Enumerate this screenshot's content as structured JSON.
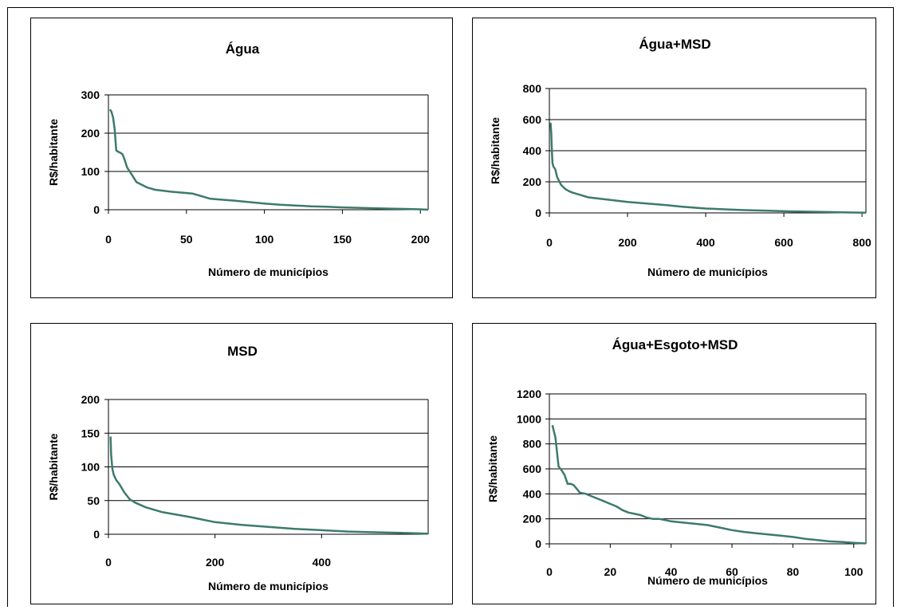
{
  "chart_data": [
    {
      "type": "line",
      "title": "Água",
      "xlabel": "Número de municípios",
      "ylabel": "R$/habitante",
      "xlim": [
        0,
        205
      ],
      "ylim": [
        0,
        300
      ],
      "xticks": [
        0,
        50,
        100,
        150,
        200
      ],
      "yticks": [
        0,
        100,
        200,
        300
      ],
      "grid": "horizontal",
      "series": [
        {
          "x": [
            1,
            2,
            3,
            4,
            5,
            6,
            7,
            8,
            9,
            10,
            12,
            14,
            16,
            18,
            20,
            25,
            30,
            40,
            54,
            60,
            65,
            70,
            80,
            90,
            100,
            110,
            120,
            130,
            140,
            150,
            160,
            170,
            180,
            190,
            200,
            205
          ],
          "y": [
            262,
            255,
            240,
            210,
            155,
            152,
            150,
            148,
            145,
            135,
            110,
            98,
            85,
            72,
            68,
            58,
            52,
            47,
            42,
            35,
            29,
            27,
            24,
            20,
            16,
            13,
            11,
            9,
            8,
            6,
            5,
            4,
            3,
            2,
            1,
            0
          ]
        }
      ]
    },
    {
      "type": "line",
      "title": "Água+MSD",
      "xlabel": "Número de municípios",
      "ylabel": "R$/habitante",
      "xlim": [
        0,
        810
      ],
      "ylim": [
        0,
        800
      ],
      "xticks": [
        0,
        200,
        400,
        600,
        800
      ],
      "yticks": [
        0,
        200,
        400,
        600,
        800
      ],
      "grid": "horizontal",
      "series": [
        {
          "x": [
            3,
            5,
            6,
            8,
            10,
            15,
            20,
            30,
            40,
            50,
            60,
            80,
            100,
            150,
            200,
            250,
            300,
            340,
            400,
            460,
            500,
            560,
            620,
            700,
            760,
            810
          ],
          "y": [
            580,
            500,
            430,
            320,
            300,
            280,
            230,
            180,
            155,
            140,
            130,
            115,
            100,
            85,
            70,
            60,
            50,
            40,
            28,
            22,
            18,
            14,
            10,
            6,
            3,
            1
          ]
        }
      ]
    },
    {
      "type": "line",
      "title": "MSD",
      "xlabel": "Número de municípios",
      "ylabel": "R$/habitante",
      "xlim": [
        0,
        600
      ],
      "ylim": [
        0,
        200
      ],
      "xticks": [
        0,
        200,
        400
      ],
      "yticks": [
        0,
        50,
        100,
        150,
        200
      ],
      "grid": "horizontal",
      "series": [
        {
          "x": [
            4,
            5,
            6,
            7,
            8,
            10,
            15,
            20,
            30,
            40,
            50,
            70,
            100,
            150,
            200,
            250,
            300,
            350,
            400,
            450,
            500,
            550,
            600
          ],
          "y": [
            145,
            120,
            110,
            100,
            95,
            88,
            80,
            75,
            62,
            52,
            47,
            40,
            33,
            26,
            18,
            14,
            11,
            8,
            6,
            4,
            3,
            2,
            1
          ]
        }
      ]
    },
    {
      "type": "line",
      "title": "Água+Esgoto+MSD",
      "xlabel": "Número de municípios",
      "ylabel": "R$/habitante",
      "xlim": [
        0,
        104
      ],
      "ylim": [
        0,
        1200
      ],
      "xticks": [
        0,
        20,
        40,
        60,
        80,
        100
      ],
      "yticks": [
        0,
        200,
        400,
        600,
        800,
        1000,
        1200
      ],
      "grid": "horizontal",
      "series": [
        {
          "x": [
            1,
            2,
            3,
            4,
            5,
            6,
            7,
            8,
            9,
            10,
            12,
            14,
            16,
            18,
            20,
            22,
            24,
            26,
            28,
            30,
            32,
            34,
            36,
            38,
            40,
            44,
            48,
            52,
            56,
            60,
            64,
            68,
            72,
            76,
            80,
            84,
            88,
            92,
            96,
            100,
            104
          ],
          "y": [
            950,
            850,
            620,
            590,
            550,
            480,
            480,
            470,
            440,
            410,
            400,
            380,
            360,
            340,
            320,
            300,
            270,
            250,
            240,
            230,
            210,
            200,
            200,
            190,
            180,
            170,
            160,
            150,
            130,
            110,
            95,
            85,
            75,
            65,
            55,
            40,
            30,
            20,
            15,
            8,
            3
          ]
        }
      ]
    }
  ]
}
